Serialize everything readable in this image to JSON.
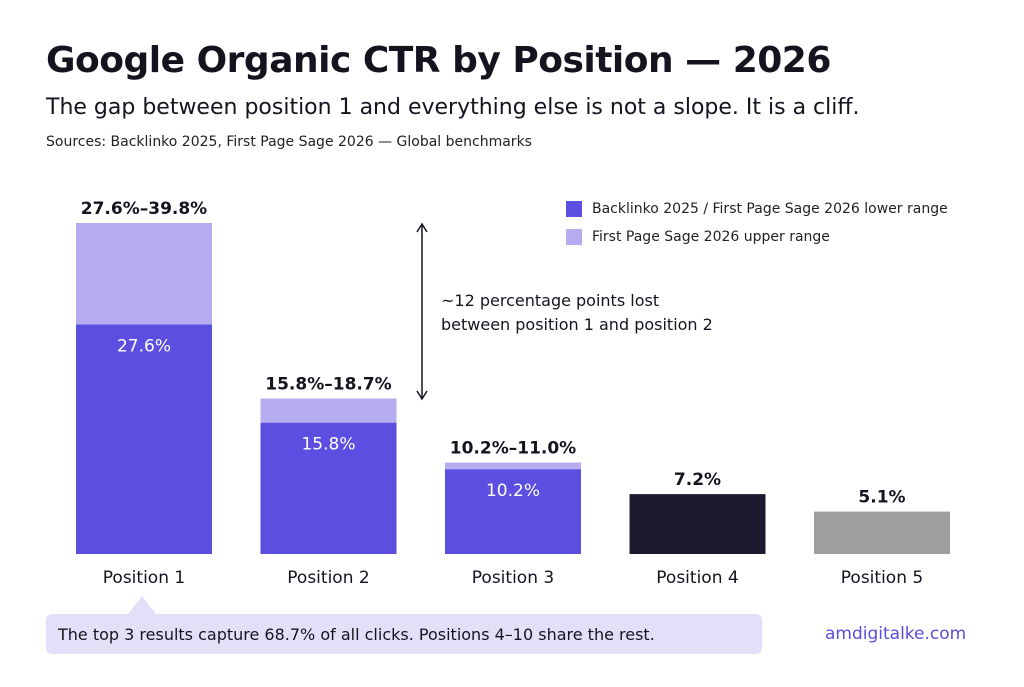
{
  "header": {
    "title": "Google Organic CTR by Position — 2026",
    "subtitle": "The gap between position 1 and everything else is not a slope. It is a cliff.",
    "sources": "Sources: Backlinko 2025, First Page Sage 2026 — Global benchmarks"
  },
  "legend": {
    "items": [
      {
        "label": "Backlinko 2025 / First Page Sage 2026 lower range",
        "color": "#5b4ee0"
      },
      {
        "label": "First Page Sage 2026 upper range",
        "color": "#b6adf0"
      }
    ]
  },
  "annotation": {
    "line1": "~12 percentage points lost",
    "line2": "between position 1 and position 2"
  },
  "callout": {
    "text": "The top 3 results capture 68.7% of all clicks. Positions 4–10 share the rest."
  },
  "brand": "amdigitalke.com",
  "colors": {
    "lower": "#5b4ee0",
    "upper": "#b6adf0",
    "position4": "#1b1a2e",
    "position5": "#9e9e9e",
    "callout_bg": "#e4dff9",
    "brand": "#5a4fd6"
  },
  "chart_data": {
    "type": "bar",
    "stacked": true,
    "categories": [
      "Position 1",
      "Position 2",
      "Position 3",
      "Position 4",
      "Position 5"
    ],
    "series": [
      {
        "name": "Backlinko 2025 / First Page Sage 2026 lower range",
        "values": [
          27.6,
          15.8,
          10.2,
          7.2,
          5.1
        ]
      },
      {
        "name": "First Page Sage 2026 upper range",
        "values": [
          12.2,
          2.9,
          0.8,
          0,
          0
        ]
      }
    ],
    "top_labels": [
      "27.6%–39.8%",
      "15.8%–18.7%",
      "10.2%–11.0%",
      "7.2%",
      "5.1%"
    ],
    "inner_labels": [
      "27.6%",
      "15.8%",
      "10.2%",
      "",
      ""
    ],
    "bar_colors": [
      "#5b4ee0",
      "#5b4ee0",
      "#5b4ee0",
      "#1b1a2e",
      "#9e9e9e"
    ],
    "ylim": [
      0,
      39.8
    ],
    "grid": false,
    "legend_position": "top-right"
  }
}
